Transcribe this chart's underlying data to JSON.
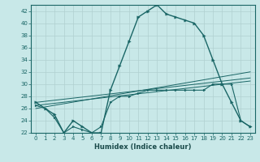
{
  "xlabel": "Humidex (Indice chaleur)",
  "bg_color": "#c8e8e8",
  "line_color": "#1a6666",
  "grid_color": "#b0d0d0",
  "xlim": [
    -0.5,
    23.5
  ],
  "ylim": [
    22,
    43
  ],
  "yticks": [
    22,
    24,
    26,
    28,
    30,
    32,
    34,
    36,
    38,
    40,
    42
  ],
  "xticks": [
    0,
    1,
    2,
    3,
    4,
    5,
    6,
    7,
    8,
    9,
    10,
    11,
    12,
    13,
    14,
    15,
    16,
    17,
    18,
    19,
    20,
    21,
    22,
    23
  ],
  "series1_x": [
    0,
    1,
    2,
    3,
    4,
    5,
    6,
    7,
    8,
    9,
    10,
    11,
    12,
    13,
    14,
    15,
    16,
    17,
    18,
    19,
    20,
    21,
    22,
    23
  ],
  "series1_y": [
    27,
    26,
    25,
    22,
    24,
    23,
    22,
    22,
    29,
    33,
    37,
    41,
    42,
    43,
    41.5,
    41,
    40.5,
    40,
    38,
    34,
    30,
    27,
    24,
    23
  ],
  "series2_x": [
    0,
    1,
    2,
    3,
    4,
    5,
    6,
    7,
    8,
    9,
    10,
    11,
    12,
    13,
    14,
    15,
    16,
    17,
    18,
    19,
    20,
    21,
    22,
    23
  ],
  "series2_y": [
    26.5,
    26,
    24.5,
    22,
    23,
    22.5,
    22,
    23,
    27,
    28,
    28,
    28.5,
    29,
    29,
    29,
    29,
    29,
    29,
    29,
    30,
    30,
    30,
    24,
    23
  ],
  "trendline1_x": [
    0,
    23
  ],
  "trendline1_y": [
    26.0,
    32.0
  ],
  "trendline2_x": [
    0,
    23
  ],
  "trendline2_y": [
    26.5,
    30.5
  ],
  "trendline3_x": [
    0,
    23
  ],
  "trendline3_y": [
    27.0,
    31.0
  ],
  "xlabel_fontsize": 6.0,
  "tick_fontsize": 5.0
}
